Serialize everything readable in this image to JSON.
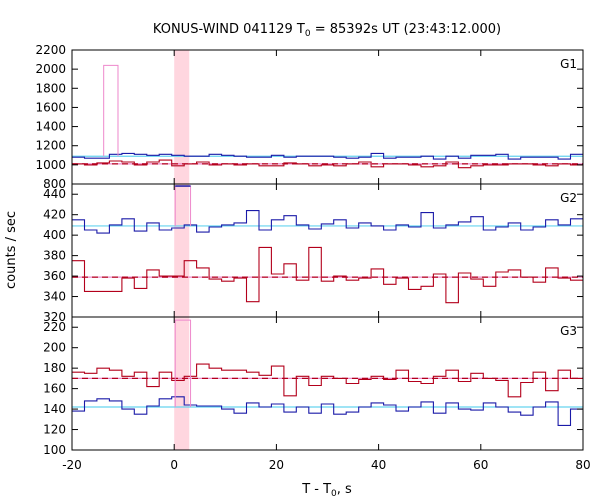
{
  "chart_data": {
    "type": "line",
    "title_main": "KONUS-WIND 041129 T",
    "title_sub": "0",
    "title_rest": " = 85392s UT (23:43:12.000)",
    "xlabel_main": "T - T",
    "xlabel_sub": "0",
    "xlabel_rest": ", s",
    "ylabel": "counts / sec",
    "xlim": [
      -20,
      80
    ],
    "x_ticks": [
      "-20",
      "0",
      "20",
      "40",
      "60",
      "80"
    ],
    "x_tick_values": [
      -20,
      0,
      20,
      40,
      60,
      80
    ],
    "grid": false,
    "colors": {
      "blue": "#1a1aa8",
      "red": "#b3001b",
      "cyan": "#66d3ef",
      "pink": "#ee88cc",
      "highlight": "#ffd6df",
      "axis": "#000000"
    },
    "highlight_interval": [
      0,
      2.944
    ],
    "panels": [
      {
        "name": "G1",
        "ylim": [
          800,
          2200
        ],
        "y_ticks": [
          800,
          1000,
          1200,
          1400,
          1600,
          1800,
          2000,
          2200
        ],
        "blue_level": 1090,
        "red_level": 1010,
        "blue_series": [
          1080,
          1070,
          1070,
          1110,
          1120,
          1110,
          1100,
          1110,
          1100,
          1090,
          1090,
          1110,
          1100,
          1090,
          1080,
          1080,
          1100,
          1080,
          1090,
          1090,
          1090,
          1080,
          1070,
          1080,
          1120,
          1070,
          1080,
          1080,
          1090,
          1060,
          1090,
          1070,
          1100,
          1100,
          1110,
          1060,
          1080,
          1080,
          1080,
          1060,
          1110
        ],
        "red_series": [
          1010,
          1000,
          1020,
          1040,
          1030,
          1000,
          1030,
          1050,
          990,
          1010,
          1030,
          1000,
          1010,
          1000,
          1010,
          990,
          990,
          1020,
          1010,
          990,
          1000,
          990,
          1010,
          1030,
          980,
          1010,
          1010,
          1000,
          980,
          990,
          1030,
          970,
          990,
          1000,
          1000,
          1010,
          1010,
          1000,
          990,
          1010,
          1000
        ],
        "spike": {
          "x0": -13.8,
          "x1": -11.0,
          "value": 2040
        }
      },
      {
        "name": "G2",
        "ylim": [
          320,
          450
        ],
        "y_ticks": [
          320,
          340,
          360,
          380,
          400,
          420,
          440
        ],
        "blue_level": 409,
        "red_level": 359,
        "blue_series": [
          415,
          405,
          402,
          410,
          416,
          404,
          412,
          405,
          407,
          410,
          403,
          408,
          410,
          412,
          424,
          405,
          415,
          419,
          410,
          406,
          411,
          415,
          407,
          412,
          409,
          405,
          410,
          408,
          422,
          407,
          410,
          413,
          418,
          405,
          408,
          412,
          405,
          408,
          415,
          410,
          416
        ],
        "red_series": [
          375,
          345,
          345,
          345,
          358,
          348,
          366,
          360,
          360,
          375,
          368,
          357,
          355,
          358,
          335,
          388,
          362,
          372,
          356,
          388,
          355,
          360,
          356,
          358,
          367,
          352,
          358,
          347,
          350,
          362,
          334,
          363,
          357,
          350,
          364,
          366,
          359,
          354,
          368,
          358,
          356
        ],
        "spike": {
          "x0": 0.2,
          "x1": 3.2,
          "value": 448
        }
      },
      {
        "name": "G3",
        "ylim": [
          100,
          230
        ],
        "y_ticks": [
          100,
          120,
          140,
          160,
          180,
          200,
          220
        ],
        "blue_level": 142,
        "red_level": 170,
        "blue_series": [
          138,
          148,
          150,
          148,
          140,
          135,
          143,
          150,
          152,
          144,
          143,
          143,
          140,
          136,
          146,
          142,
          145,
          137,
          142,
          136,
          145,
          135,
          137,
          142,
          146,
          144,
          138,
          142,
          147,
          136,
          146,
          140,
          139,
          146,
          142,
          137,
          134,
          142,
          147,
          124,
          140
        ],
        "red_series": [
          176,
          175,
          180,
          178,
          172,
          176,
          162,
          176,
          168,
          172,
          184,
          180,
          178,
          178,
          176,
          173,
          182,
          153,
          172,
          163,
          172,
          170,
          165,
          169,
          172,
          169,
          178,
          167,
          165,
          172,
          178,
          167,
          175,
          170,
          168,
          152,
          166,
          176,
          158,
          178,
          170
        ],
        "spike": {
          "x0": 0.2,
          "x1": 3.2,
          "value": 227
        }
      }
    ]
  }
}
